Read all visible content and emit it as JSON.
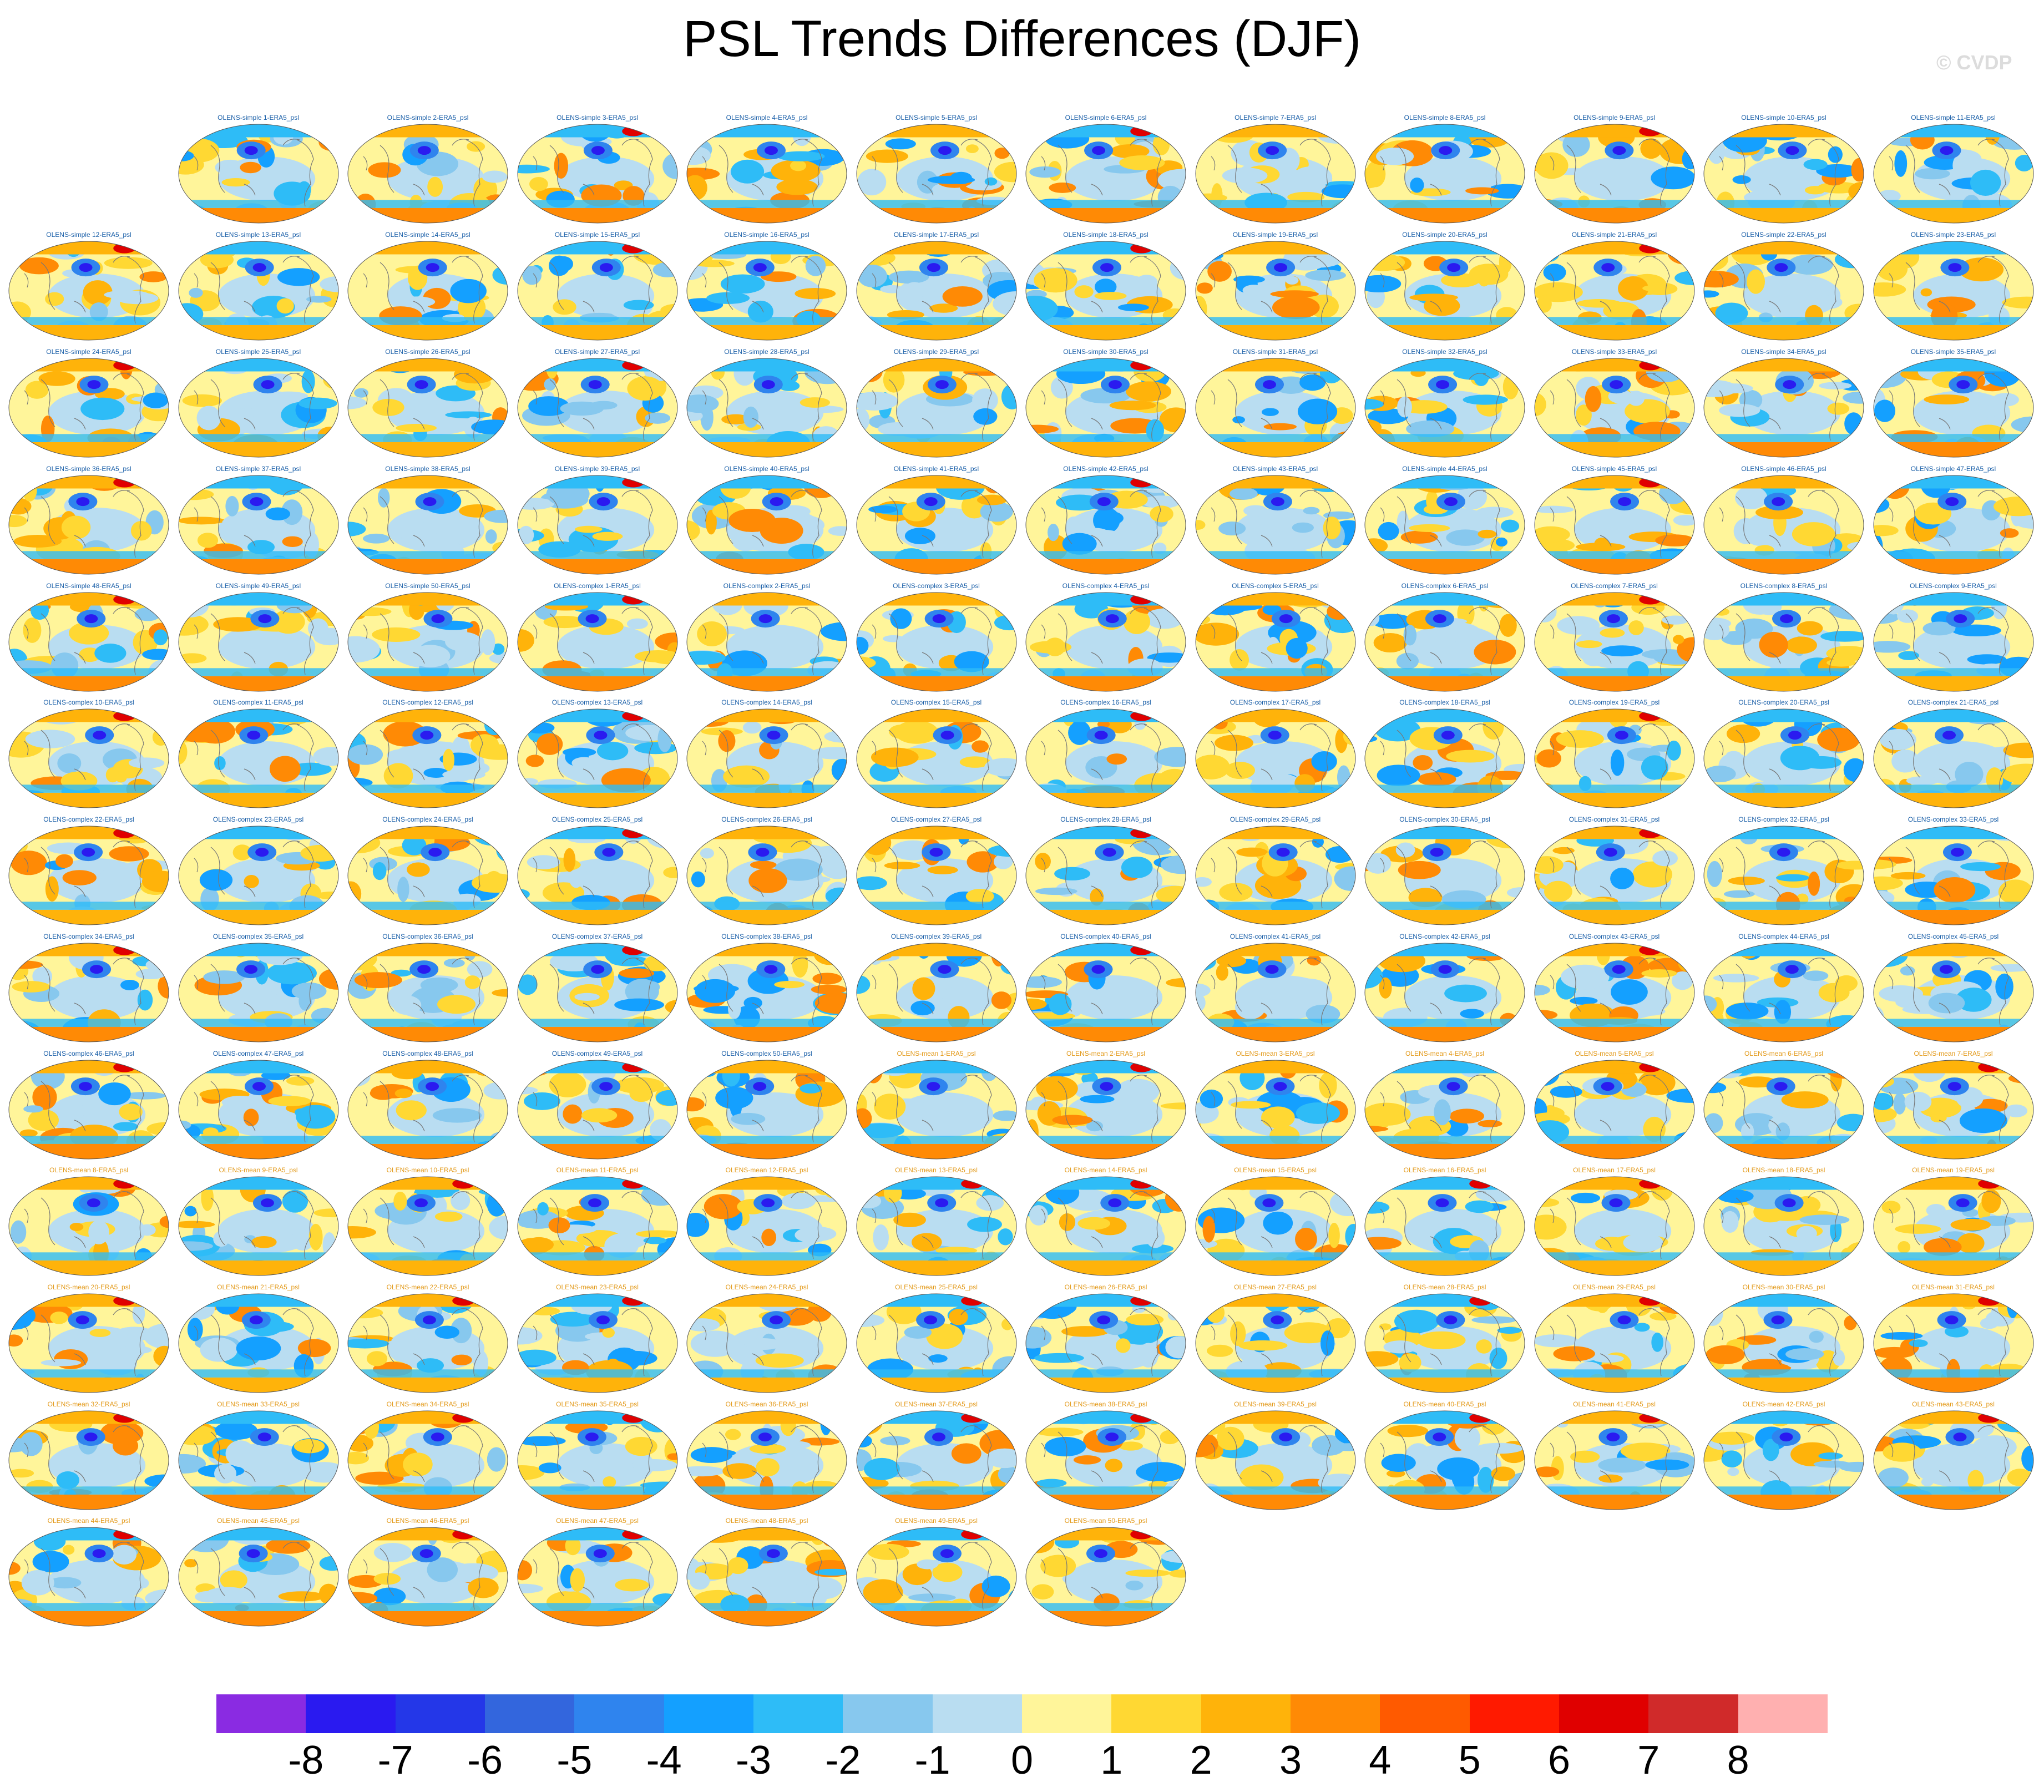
{
  "title": "PSL Trends Differences (DJF)",
  "watermark": "© CVDP",
  "panel_groups": [
    {
      "prefix": "OLENS-simple",
      "suffix": "-ERA5_psl",
      "count": 50,
      "color": "#1a5fa8"
    },
    {
      "prefix": "OLENS-complex",
      "suffix": "-ERA5_psl",
      "count": 50,
      "color": "#1a5fa8"
    },
    {
      "prefix": "OLENS-mean",
      "suffix": "-ERA5_psl",
      "count": 50,
      "color": "#e39a1a"
    }
  ],
  "colorbar": {
    "colors": [
      "#8a2be2",
      "#2a1af0",
      "#2437e8",
      "#3366dd",
      "#2f84ee",
      "#14a0ff",
      "#2ebcf7",
      "#87c8ee",
      "#b9ddf1",
      "#fff59a",
      "#ffd833",
      "#ffb30a",
      "#ff8a05",
      "#ff5a00",
      "#ff1a00",
      "#e00000",
      "#d02a2a",
      "#ffb0b0"
    ],
    "labels": [
      "-8",
      "-7",
      "-6",
      "-5",
      "-4",
      "-3",
      "-2",
      "-1",
      "0",
      "1",
      "2",
      "3",
      "4",
      "5",
      "6",
      "7",
      "8"
    ]
  }
}
